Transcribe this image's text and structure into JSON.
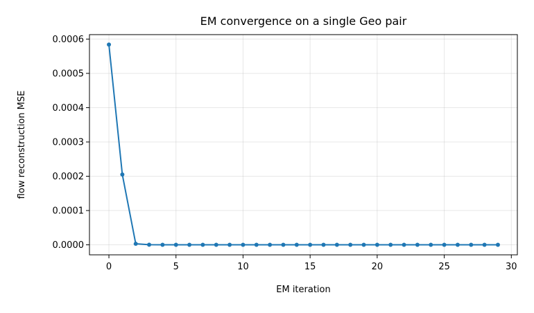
{
  "chart_data": {
    "type": "line",
    "title": "EM convergence on a single Geo pair",
    "xlabel": "EM iteration",
    "ylabel": "flow reconstruction MSE",
    "xlim": [
      -1.45,
      30.45
    ],
    "ylim": [
      -2.92e-05,
      0.000613
    ],
    "xticks": [
      0,
      5,
      10,
      15,
      20,
      25,
      30
    ],
    "xtick_labels": [
      "0",
      "5",
      "10",
      "15",
      "20",
      "25",
      "30"
    ],
    "yticks": [
      0,
      0.0001,
      0.0002,
      0.0003,
      0.0004,
      0.0005,
      0.0006
    ],
    "ytick_labels": [
      "0.0000",
      "0.0001",
      "0.0002",
      "0.0003",
      "0.0004",
      "0.0005",
      "0.0006"
    ],
    "grid": true,
    "series": [
      {
        "color": "#1f77b4",
        "marker": "circle",
        "x": [
          0,
          1,
          2,
          3,
          4,
          5,
          6,
          7,
          8,
          9,
          10,
          11,
          12,
          13,
          14,
          15,
          16,
          17,
          18,
          19,
          20,
          21,
          22,
          23,
          24,
          25,
          26,
          27,
          28,
          29
        ],
        "y": [
          0.000584,
          0.000205,
          3e-06,
          3e-07,
          0,
          0,
          0,
          0,
          0,
          0,
          0,
          0,
          0,
          0,
          0,
          0,
          0,
          0,
          0,
          0,
          0,
          0,
          0,
          0,
          0,
          0,
          0,
          0,
          0,
          0
        ]
      }
    ]
  }
}
